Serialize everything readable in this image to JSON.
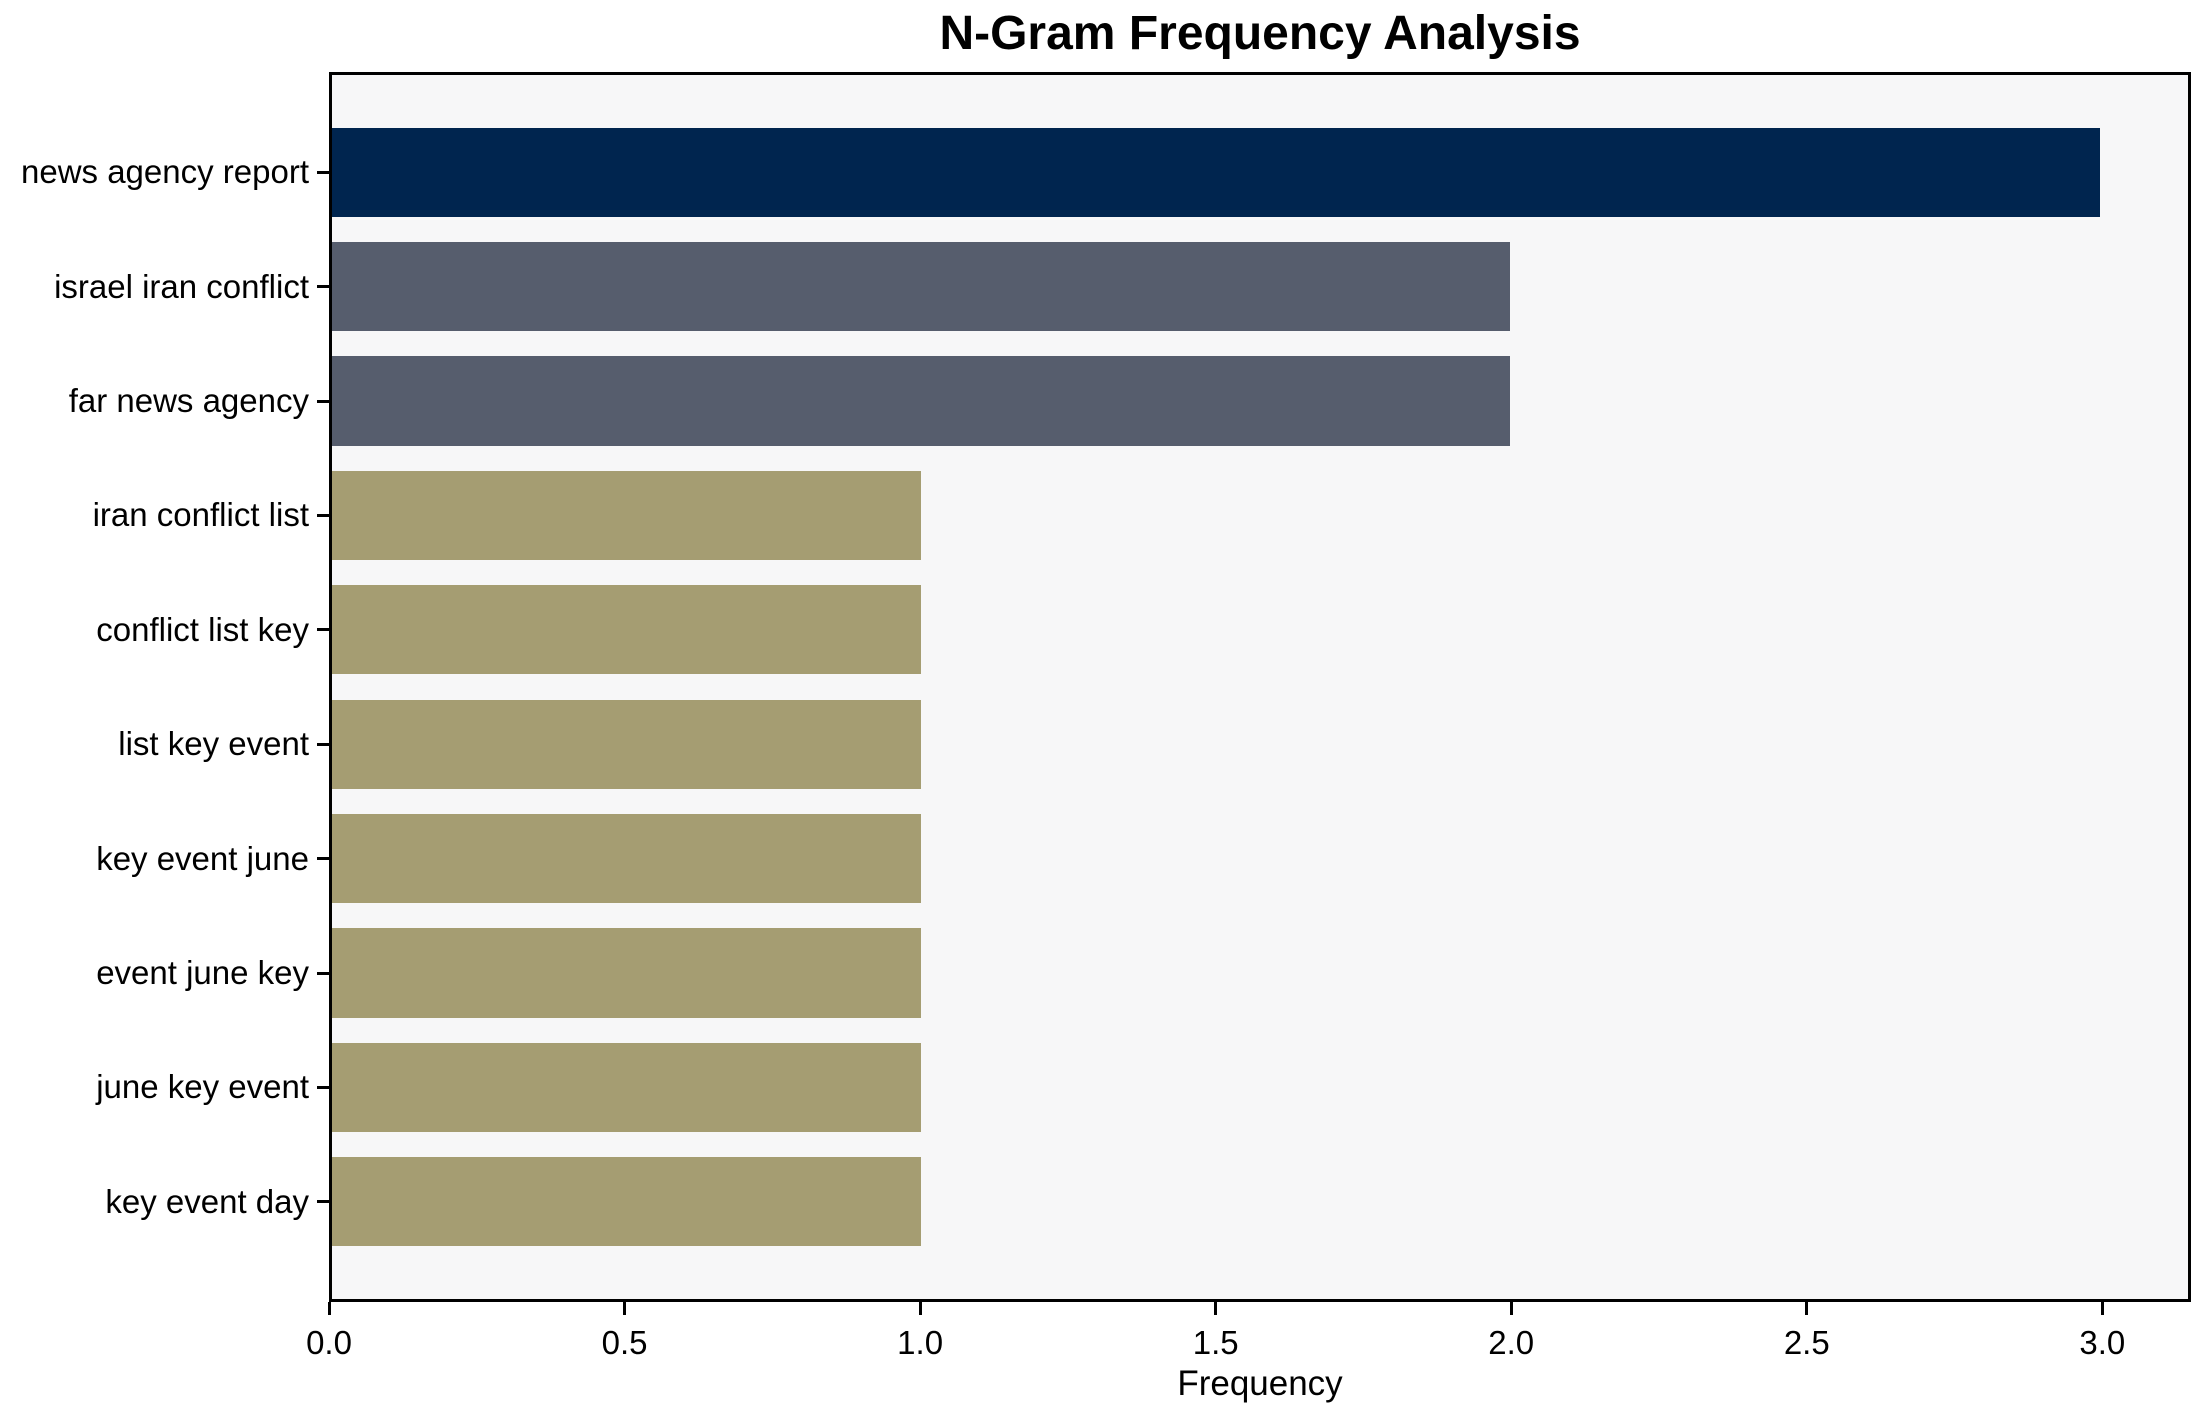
{
  "chart_data": {
    "type": "bar",
    "orientation": "horizontal",
    "title": "N-Gram Frequency Analysis",
    "xlabel": "Frequency",
    "categories": [
      "news agency report",
      "israel iran conflict",
      "far news agency",
      "iran conflict list",
      "conflict list key",
      "list key event",
      "key event june",
      "event june key",
      "june key event",
      "key event day"
    ],
    "values": [
      3,
      2,
      2,
      1,
      1,
      1,
      1,
      1,
      1,
      1
    ],
    "bar_colors": [
      "#00254f",
      "#565d6d",
      "#565d6d",
      "#a59d72",
      "#a59d72",
      "#a59d72",
      "#a59d72",
      "#a59d72",
      "#a59d72",
      "#a59d72"
    ],
    "xlim": [
      0,
      3.15
    ],
    "xticks": [
      0.0,
      0.5,
      1.0,
      1.5,
      2.0,
      2.5,
      3.0
    ],
    "xtick_labels": [
      "0.0",
      "0.5",
      "1.0",
      "1.5",
      "2.0",
      "2.5",
      "3.0"
    ],
    "grid": false,
    "legend": null,
    "plot_background": "#f7f7f8",
    "figure_background": "#ffffff",
    "spine_color": "#000000"
  }
}
